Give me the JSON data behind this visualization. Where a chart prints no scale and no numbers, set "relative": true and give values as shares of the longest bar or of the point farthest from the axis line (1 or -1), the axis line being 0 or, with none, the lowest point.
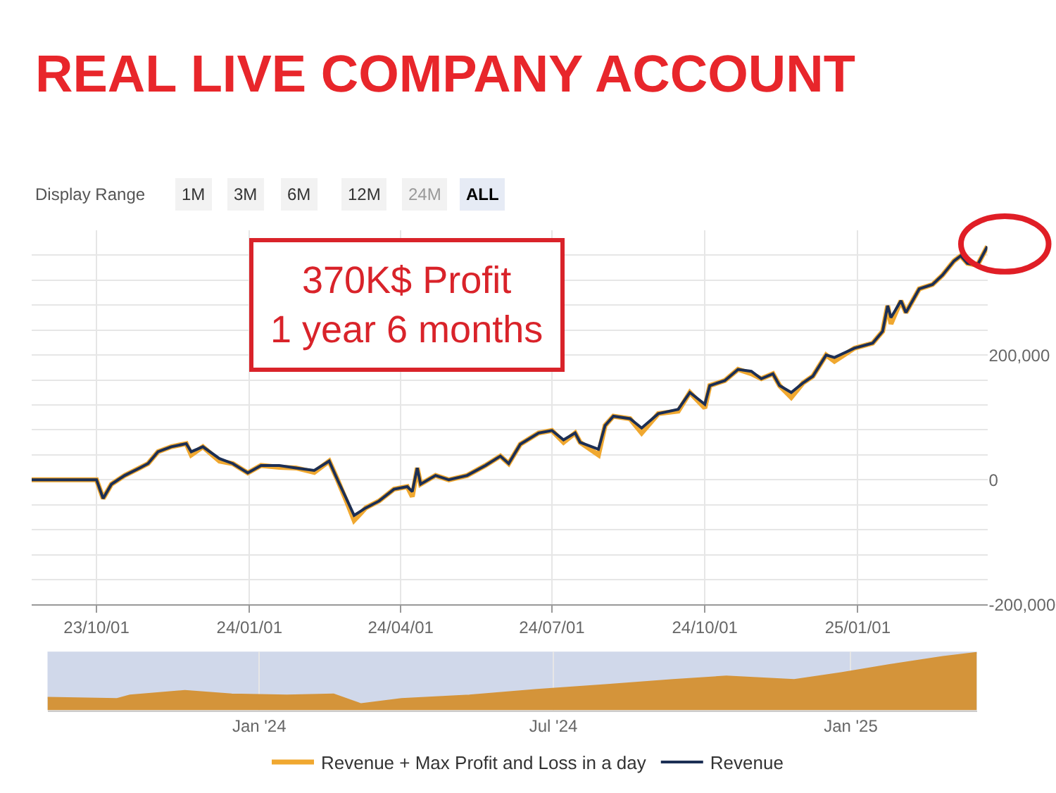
{
  "chart_data": [
    {
      "type": "line",
      "title": "REAL LIVE COMPANY ACCOUNT",
      "annotations": [
        "Display Range",
        "1M",
        "3M",
        "6M",
        "12M",
        "24M",
        "ALL",
        "370K$ Profit",
        "1 year 6 months"
      ],
      "x": [
        "2023-08-23",
        "2023-10-01",
        "2023-10-05",
        "2023-10-10",
        "2023-10-18",
        "2023-10-27",
        "2023-11-01",
        "2023-11-07",
        "2023-11-15",
        "2023-11-24",
        "2023-11-27",
        "2023-12-04",
        "2023-12-14",
        "2023-12-22",
        "2023-12-31",
        "2024-01-08",
        "2024-01-19",
        "2024-01-29",
        "2024-02-09",
        "2024-02-18",
        "2024-02-23",
        "2024-02-29",
        "2024-03-04",
        "2024-03-11",
        "2024-03-19",
        "2024-03-28",
        "2024-04-05",
        "2024-04-08",
        "2024-04-11",
        "2024-04-13",
        "2024-04-22",
        "2024-04-30",
        "2024-05-11",
        "2024-05-22",
        "2024-05-31",
        "2024-06-05",
        "2024-06-12",
        "2024-06-23",
        "2024-07-01",
        "2024-07-08",
        "2024-07-15",
        "2024-07-18",
        "2024-07-29",
        "2024-08-02",
        "2024-08-07",
        "2024-08-17",
        "2024-08-24",
        "2024-09-03",
        "2024-09-15",
        "2024-09-22",
        "2024-10-01",
        "2024-10-04",
        "2024-10-13",
        "2024-10-21",
        "2024-10-29",
        "2024-11-04",
        "2024-11-11",
        "2024-11-15",
        "2024-11-22",
        "2024-11-29",
        "2024-12-05",
        "2024-12-13",
        "2024-12-18",
        "2024-12-30",
        "2025-01-10",
        "2025-01-16",
        "2025-01-19",
        "2025-01-21",
        "2025-01-27",
        "2025-01-30",
        "2025-02-07",
        "2025-02-15",
        "2025-02-21",
        "2025-02-28",
        "2025-03-04",
        "2025-03-08",
        "2025-03-14",
        "2025-03-20"
      ],
      "series": [
        {
          "name": "Revenue + Max Profit and Loss in a day",
          "color": "#f0a830",
          "values": [
            0,
            0,
            -30000,
            -7000,
            7000,
            19000,
            26000,
            45000,
            53000,
            58000,
            40000,
            53000,
            30000,
            26000,
            11000,
            23000,
            20000,
            19000,
            12000,
            30000,
            0,
            -38000,
            -65000,
            -45000,
            -34000,
            -15000,
            -11000,
            -27000,
            19000,
            -7000,
            7000,
            0,
            7000,
            23000,
            38000,
            26000,
            57000,
            75000,
            79000,
            60000,
            75000,
            60000,
            40000,
            87000,
            102000,
            98000,
            75000,
            106000,
            110000,
            140000,
            115000,
            151000,
            159000,
            177000,
            170000,
            162000,
            170000,
            151000,
            132000,
            155000,
            166000,
            200000,
            190000,
            211000,
            219000,
            238000,
            279000,
            250000,
            287000,
            268000,
            306000,
            313000,
            328000,
            351000,
            359000,
            347000,
            344000,
            374000
          ]
        },
        {
          "name": "Revenue",
          "color": "#1c2f55",
          "values": [
            0,
            0,
            -30000,
            -7000,
            7000,
            19000,
            26000,
            45000,
            53000,
            58000,
            45000,
            53000,
            34000,
            26000,
            11000,
            23000,
            23000,
            19000,
            15000,
            30000,
            0,
            -34000,
            -57000,
            -45000,
            -34000,
            -15000,
            -11000,
            -19000,
            19000,
            -7000,
            7000,
            0,
            7000,
            23000,
            38000,
            26000,
            57000,
            75000,
            79000,
            64000,
            75000,
            60000,
            49000,
            87000,
            102000,
            98000,
            83000,
            106000,
            113000,
            140000,
            121000,
            151000,
            159000,
            177000,
            174000,
            162000,
            170000,
            151000,
            140000,
            155000,
            166000,
            200000,
            196000,
            211000,
            219000,
            238000,
            279000,
            260000,
            287000,
            268000,
            306000,
            313000,
            328000,
            351000,
            359000,
            347000,
            344000,
            374000
          ]
        }
      ],
      "xlim": [
        "2023-08-23",
        "2025-03-20"
      ],
      "xticks": [
        {
          "value": "2023-10-01",
          "label": "23/10/01"
        },
        {
          "value": "2024-01-01",
          "label": "24/01/01"
        },
        {
          "value": "2024-04-01",
          "label": "24/04/01"
        },
        {
          "value": "2024-07-01",
          "label": "24/07/01"
        },
        {
          "value": "2024-10-01",
          "label": "24/10/01"
        },
        {
          "value": "2025-01-01",
          "label": "25/01/01"
        }
      ],
      "ylim": [
        -200000,
        400000
      ],
      "yticks": [
        {
          "value": -200000,
          "label": "-200,000"
        },
        {
          "value": -160000,
          "label": null
        },
        {
          "value": -120000,
          "label": null
        },
        {
          "value": -80000,
          "label": null
        },
        {
          "value": -40000,
          "label": null
        },
        0,
        {
          "value": 40000,
          "label": null
        },
        {
          "value": 80000,
          "label": null
        },
        {
          "value": 120000,
          "label": null
        },
        {
          "value": 160000,
          "label": null
        },
        {
          "value": 200000,
          "label": "200,000"
        },
        {
          "value": 240000,
          "label": null
        },
        {
          "value": 280000,
          "label": null
        },
        {
          "value": 320000,
          "label": null
        },
        {
          "value": 360000,
          "label": null
        }
      ],
      "grid": true,
      "legend": "bottom",
      "line_style": "solid",
      "marker": "none"
    },
    {
      "type": "area",
      "relative": true,
      "color": "#d4943a",
      "x": [
        "2023-08-23",
        "2023-10-05",
        "2023-10-13",
        "2023-11-16",
        "2023-12-15",
        "2024-01-18",
        "2024-02-16",
        "2024-03-04",
        "2024-03-29",
        "2024-05-10",
        "2024-06-21",
        "2024-08-02",
        "2024-09-13",
        "2024-10-16",
        "2024-11-27",
        "2024-12-26",
        "2025-01-25",
        "2025-02-27",
        "2025-03-20"
      ],
      "values": [
        0.22,
        0.2,
        0.26,
        0.34,
        0.28,
        0.26,
        0.28,
        0.11,
        0.2,
        0.26,
        0.36,
        0.44,
        0.53,
        0.59,
        0.53,
        0.65,
        0.79,
        0.93,
        1
      ],
      "xlim": [
        "2023-08-23",
        "2025-03-20"
      ],
      "xticks": [
        {
          "value": "2024-01-01",
          "label": "Jan '24"
        },
        {
          "value": "2024-07-01",
          "label": "Jul '24"
        },
        {
          "value": "2025-01-01",
          "label": "Jan '25"
        }
      ],
      "grid": "x",
      "tick_labels": "x"
    }
  ]
}
